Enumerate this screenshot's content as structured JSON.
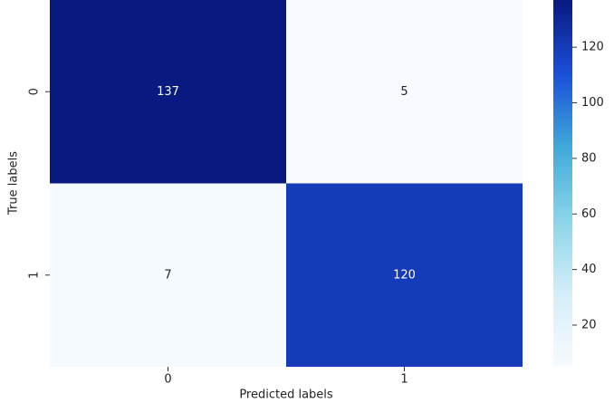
{
  "chart_data": {
    "type": "heatmap",
    "x_label": "Predicted labels",
    "y_label": "True labels",
    "x_categories": [
      "0",
      "1"
    ],
    "y_categories": [
      "0",
      "1"
    ],
    "values": [
      [
        137,
        5
      ],
      [
        7,
        120
      ]
    ],
    "colormap": [
      "#f7fbff",
      "#d4eef8",
      "#8ad5e8",
      "#3fa9d9",
      "#1a4ed8",
      "#081a7f"
    ],
    "clim": [
      5,
      137
    ],
    "cticks": [
      20,
      40,
      60,
      80,
      100,
      120
    ]
  }
}
